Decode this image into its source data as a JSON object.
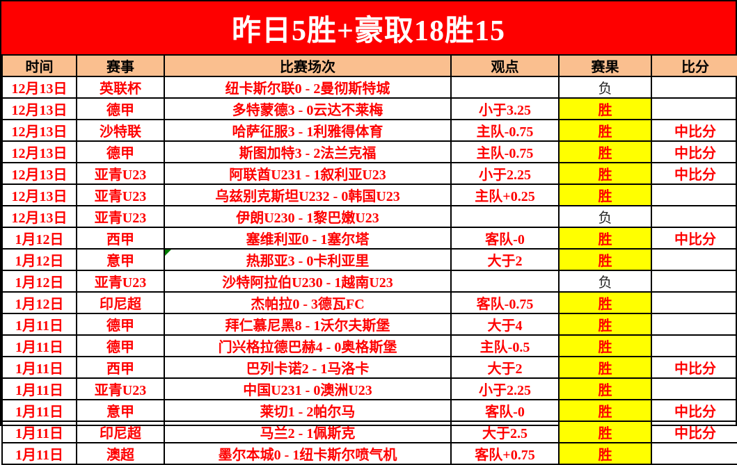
{
  "banner": {
    "title": "昨日5胜+豪取18胜15",
    "bg_color": "#FE0000",
    "text_color": "#FFFFFF"
  },
  "table": {
    "columns": [
      "时间",
      "赛事",
      "比赛场次",
      "观点",
      "赛果",
      "比分"
    ],
    "header_bg": "#FABF8F",
    "win_bg": "#FFFF00",
    "accent_red": "#FE0000",
    "win_text": "胜",
    "loss_text": "负",
    "rows": [
      {
        "date": "12月13日",
        "league": "英联杯",
        "match": "纽卡斯尔联0 - 2曼彻斯特城",
        "view": "",
        "result": "负",
        "score": ""
      },
      {
        "date": "12月13日",
        "league": "德甲",
        "match": "多特蒙德3 - 0云达不莱梅",
        "view": "小于3.25",
        "result": "胜",
        "score": ""
      },
      {
        "date": "12月13日",
        "league": "沙特联",
        "match": "哈萨征服3 - 1利雅得体育",
        "view": "主队-0.75",
        "result": "胜",
        "score": "中比分"
      },
      {
        "date": "12月13日",
        "league": "德甲",
        "match": "斯图加特3 - 2法兰克福",
        "view": "主队-0.75",
        "result": "胜",
        "score": "中比分"
      },
      {
        "date": "12月13日",
        "league": "亚青U23",
        "match": "阿联酋U231 - 1叙利亚U23",
        "view": "小于2.25",
        "result": "胜",
        "score": "中比分"
      },
      {
        "date": "12月13日",
        "league": "亚青U23",
        "match": "乌兹别克斯坦U232 - 0韩国U23",
        "view": "主队+0.25",
        "result": "胜",
        "score": ""
      },
      {
        "date": "12月13日",
        "league": "亚青U23",
        "match": "伊朗U230 - 1黎巴嫩U23",
        "view": "",
        "result": "负",
        "score": ""
      },
      {
        "date": "1月12日",
        "league": "西甲",
        "match": "塞维利亚0 - 1塞尔塔",
        "view": "客队-0",
        "result": "胜",
        "score": "中比分"
      },
      {
        "date": "1月12日",
        "league": "意甲",
        "match": "热那亚3 - 0卡利亚里",
        "view": "大于2",
        "result": "胜",
        "score": "",
        "note_marker": true
      },
      {
        "date": "1月12日",
        "league": "亚青U23",
        "match": "沙特阿拉伯U230 - 1越南U23",
        "view": "",
        "result": "负",
        "score": ""
      },
      {
        "date": "1月12日",
        "league": "印尼超",
        "match": "杰帕拉0 - 3德瓦FC",
        "view": "客队-0.75",
        "result": "胜",
        "score": ""
      },
      {
        "date": "1月11日",
        "league": "德甲",
        "match": "拜仁慕尼黑8 - 1沃尔夫斯堡",
        "view": "大于4",
        "result": "胜",
        "score": ""
      },
      {
        "date": "1月11日",
        "league": "德甲",
        "match": "门兴格拉德巴赫4 - 0奥格斯堡",
        "view": "主队-0.5",
        "result": "胜",
        "score": ""
      },
      {
        "date": "1月11日",
        "league": "西甲",
        "match": "巴列卡诺2 - 1马洛卡",
        "view": "大于2",
        "result": "胜",
        "score": "中比分"
      },
      {
        "date": "1月11日",
        "league": "亚青U23",
        "match": "中国U231 - 0澳洲U23",
        "view": "小于2.25",
        "result": "胜",
        "score": ""
      },
      {
        "date": "1月11日",
        "league": "意甲",
        "match": "莱切1 - 2帕尔马",
        "view": "客队-0",
        "result": "胜",
        "score": "中比分"
      },
      {
        "date": "1月11日",
        "league": "印尼超",
        "match": "马兰2 - 1佩斯克",
        "view": "大于2.5",
        "result": "胜",
        "score": "中比分"
      },
      {
        "date": "1月11日",
        "league": "澳超",
        "match": "墨尔本城0 - 1纽卡斯尔喷气机",
        "view": "客队+0.75",
        "result": "胜",
        "score": ""
      }
    ]
  }
}
